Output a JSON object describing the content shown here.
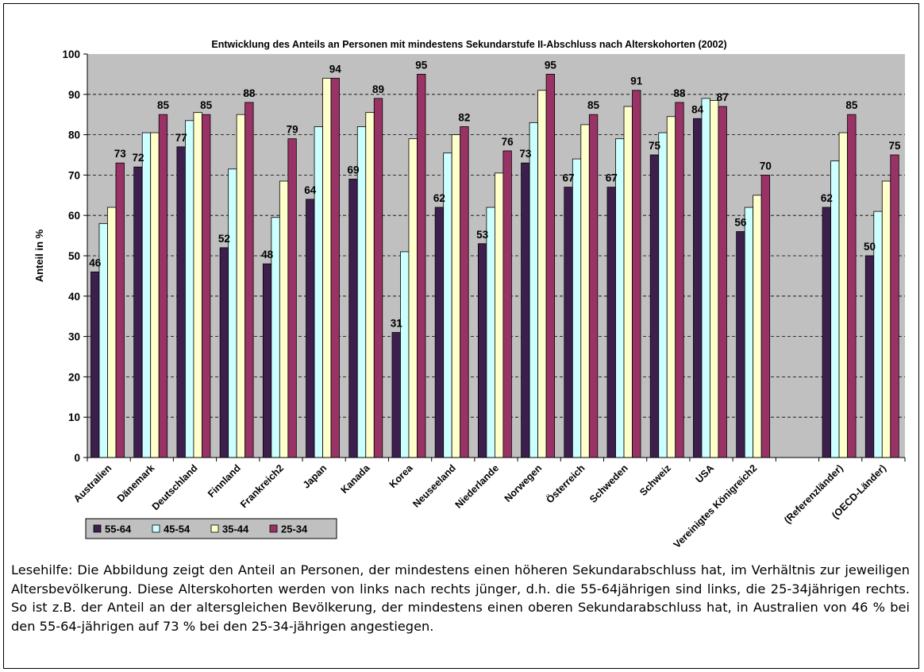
{
  "chart_data": {
    "type": "bar",
    "title": "Entwicklung des Anteils an Personen mit mindestens Sekundarstufe II-Abschluss nach Alterskohorten (2002)",
    "ylabel": "Anteil in %",
    "xlabel": "",
    "ylim": [
      0,
      100
    ],
    "yticks": [
      0,
      10,
      20,
      30,
      40,
      50,
      60,
      70,
      80,
      90,
      100
    ],
    "grid": true,
    "legend_position": "bottom-left",
    "categories": [
      "Australien",
      "Dänemark",
      "Deutschland",
      "Finnland",
      "Frankreich2",
      "Japan",
      "Kanada",
      "Korea",
      "Neuseeland",
      "Niederlande",
      "Norwegen",
      "Österreich",
      "Schweden",
      "Schweiz",
      "USA",
      "Vereinigtes Königreich2",
      "",
      "(Referenzländer)",
      "(OECD-Länder)"
    ],
    "series": [
      {
        "name": "55-64",
        "color": "#3d1f4e",
        "values": [
          46,
          72,
          77,
          52,
          48,
          64,
          69,
          31,
          62,
          53,
          73,
          67,
          67,
          75,
          84,
          56,
          null,
          62,
          50
        ]
      },
      {
        "name": "45-54",
        "color": "#ccffff",
        "values": [
          58,
          80.5,
          83.5,
          71.5,
          59.5,
          82,
          82,
          51,
          75.5,
          62,
          83,
          74,
          79,
          80.5,
          89,
          62,
          null,
          73.5,
          61
        ]
      },
      {
        "name": "35-44",
        "color": "#ffffcc",
        "values": [
          62,
          80.5,
          85.5,
          85,
          68.5,
          94,
          85.5,
          79,
          80,
          70.5,
          91,
          82.5,
          87,
          84.5,
          88.5,
          65,
          null,
          80.5,
          68.5
        ]
      },
      {
        "name": "25-34",
        "color": "#993366",
        "values": [
          73,
          85,
          85,
          88,
          79,
          94,
          89,
          95,
          82,
          76,
          95,
          85,
          91,
          88,
          87,
          70,
          null,
          85,
          75
        ]
      }
    ],
    "data_labels": [
      {
        "category": "Australien",
        "series": "55-64",
        "text": "46"
      },
      {
        "category": "Australien",
        "series": "25-34",
        "text": "73"
      },
      {
        "category": "Dänemark",
        "series": "55-64",
        "text": "72"
      },
      {
        "category": "Dänemark",
        "series": "25-34",
        "text": "85"
      },
      {
        "category": "Deutschland",
        "series": "55-64",
        "text": "77"
      },
      {
        "category": "Deutschland",
        "series": "25-34",
        "text": "85"
      },
      {
        "category": "Finnland",
        "series": "55-64",
        "text": "52"
      },
      {
        "category": "Finnland",
        "series": "25-34",
        "text": "88"
      },
      {
        "category": "Frankreich2",
        "series": "55-64",
        "text": "48"
      },
      {
        "category": "Frankreich2",
        "series": "25-34",
        "text": "79"
      },
      {
        "category": "Japan",
        "series": "55-64",
        "text": "64"
      },
      {
        "category": "Japan",
        "series": "25-34",
        "text": "94"
      },
      {
        "category": "Kanada",
        "series": "55-64",
        "text": "69"
      },
      {
        "category": "Kanada",
        "series": "25-34",
        "text": "89"
      },
      {
        "category": "Korea",
        "series": "55-64",
        "text": "31"
      },
      {
        "category": "Korea",
        "series": "25-34",
        "text": "95"
      },
      {
        "category": "Neuseeland",
        "series": "55-64",
        "text": "62"
      },
      {
        "category": "Neuseeland",
        "series": "25-34",
        "text": "82"
      },
      {
        "category": "Niederlande",
        "series": "55-64",
        "text": "53"
      },
      {
        "category": "Niederlande",
        "series": "25-34",
        "text": "76"
      },
      {
        "category": "Norwegen",
        "series": "55-64",
        "text": "73"
      },
      {
        "category": "Norwegen",
        "series": "25-34",
        "text": "95"
      },
      {
        "category": "Österreich",
        "series": "55-64",
        "text": "67"
      },
      {
        "category": "Österreich",
        "series": "25-34",
        "text": "85"
      },
      {
        "category": "Schweden",
        "series": "55-64",
        "text": "67"
      },
      {
        "category": "Schweden",
        "series": "25-34",
        "text": "91"
      },
      {
        "category": "Schweiz",
        "series": "55-64",
        "text": "75"
      },
      {
        "category": "Schweiz",
        "series": "25-34",
        "text": "88"
      },
      {
        "category": "USA",
        "series": "55-64",
        "text": "84"
      },
      {
        "category": "USA",
        "series": "25-34",
        "text": "87"
      },
      {
        "category": "Vereinigtes Königreich2",
        "series": "55-64",
        "text": "56"
      },
      {
        "category": "Vereinigtes Königreich2",
        "series": "25-34",
        "text": "70"
      },
      {
        "category": "(Referenzländer)",
        "series": "55-64",
        "text": "62"
      },
      {
        "category": "(Referenzländer)",
        "series": "25-34",
        "text": "85"
      },
      {
        "category": "(OECD-Länder)",
        "series": "55-64",
        "text": "50"
      },
      {
        "category": "(OECD-Länder)",
        "series": "25-34",
        "text": "75"
      }
    ]
  },
  "caption": "Lesehilfe: Die Abbildung zeigt den Anteil an Personen, der mindestens einen höheren Sekundarabschluss hat, im Verhältnis zur jeweiligen Altersbevölkerung. Diese Alterskohorten werden von links nach rechts jünger, d.h. die 55-64jährigen sind links, die 25-34jährigen rechts. So ist z.B. der Anteil an der altersgleichen Bevölkerung, der mindestens einen oberen Sekundarabschluss hat, in Australien von 46 % bei den 55-64-jährigen auf 73 % bei den 25-34-jährigen angestiegen."
}
